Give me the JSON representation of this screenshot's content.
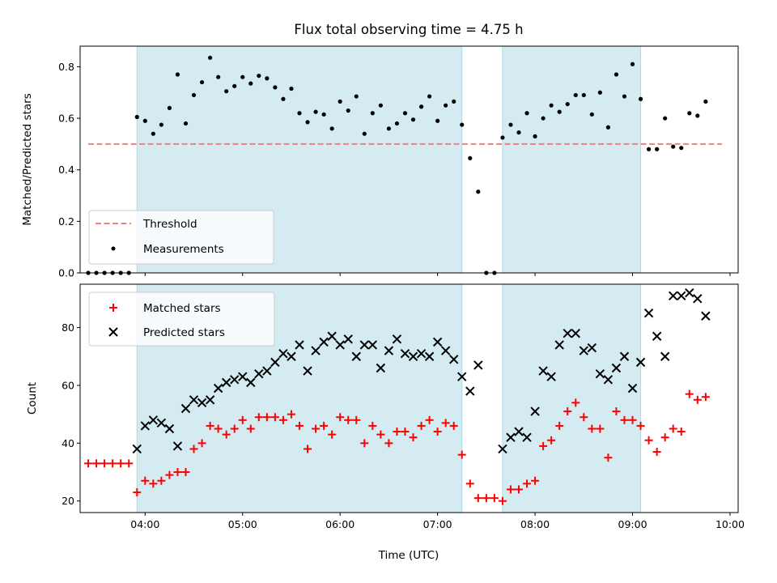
{
  "colors": {
    "shade": "#add8e6",
    "threshold": "#f08080",
    "measurement": "#000000",
    "matched": "#ff0000",
    "predicted": "#000000"
  },
  "chart_data": [
    {
      "type": "scatter",
      "title": "Flux total observing time = 4.75 h",
      "xlabel": "",
      "ylabel": "Matched/Predicted stars",
      "xlim": [
        "03:20",
        "10:05"
      ],
      "ylim": [
        0,
        0.88
      ],
      "y_ticks": [
        0,
        0.2,
        0.4,
        0.6,
        0.8
      ],
      "y_tick_labels": [
        "0.0",
        "0.2",
        "0.4",
        "0.6",
        "0.8"
      ],
      "x_tick_labels_shown": false,
      "shaded_intervals": [
        [
          "03:55",
          "07:15"
        ],
        [
          "07:40",
          "09:05"
        ]
      ],
      "legend": {
        "placement": "lower-left",
        "entries": [
          "Threshold",
          "Measurements"
        ]
      },
      "threshold": {
        "name": "Threshold",
        "value": 0.5,
        "x_range": [
          "03:25",
          "09:55"
        ]
      },
      "series": [
        {
          "name": "Measurements",
          "x": [
            "03:25",
            "03:30",
            "03:35",
            "03:40",
            "03:45",
            "03:50",
            "03:55",
            "04:00",
            "04:05",
            "04:10",
            "04:15",
            "04:20",
            "04:25",
            "04:30",
            "04:35",
            "04:40",
            "04:45",
            "04:50",
            "04:55",
            "05:00",
            "05:05",
            "05:10",
            "05:15",
            "05:20",
            "05:25",
            "05:30",
            "05:35",
            "05:40",
            "05:45",
            "05:50",
            "05:55",
            "06:00",
            "06:05",
            "06:10",
            "06:15",
            "06:20",
            "06:25",
            "06:30",
            "06:35",
            "06:40",
            "06:45",
            "06:50",
            "06:55",
            "07:00",
            "07:05",
            "07:10",
            "07:15",
            "07:20",
            "07:25",
            "07:30",
            "07:35",
            "07:40",
            "07:45",
            "07:50",
            "07:55",
            "08:00",
            "08:05",
            "08:10",
            "08:15",
            "08:20",
            "08:25",
            "08:30",
            "08:35",
            "08:40",
            "08:45",
            "08:50",
            "08:55",
            "09:00",
            "09:05",
            "09:10",
            "09:15",
            "09:20",
            "09:25",
            "09:30",
            "09:35",
            "09:40",
            "09:45"
          ],
          "values": [
            0.0,
            0.0,
            0.0,
            0.0,
            0.0,
            0.0,
            0.605,
            0.59,
            0.54,
            0.575,
            0.64,
            0.77,
            0.58,
            0.69,
            0.74,
            0.835,
            0.76,
            0.705,
            0.725,
            0.76,
            0.735,
            0.765,
            0.755,
            0.72,
            0.675,
            0.715,
            0.62,
            0.585,
            0.625,
            0.615,
            0.56,
            0.665,
            0.63,
            0.685,
            0.54,
            0.62,
            0.65,
            0.56,
            0.58,
            0.62,
            0.595,
            0.645,
            0.685,
            0.59,
            0.65,
            0.665,
            0.575,
            0.445,
            0.315,
            0.0,
            0.0,
            0.525,
            0.575,
            0.545,
            0.62,
            0.53,
            0.6,
            0.65,
            0.625,
            0.655,
            0.69,
            0.69,
            0.615,
            0.7,
            0.565,
            0.77,
            0.685,
            0.81,
            0.675,
            0.48,
            0.48,
            0.6,
            0.49,
            0.485,
            0.62,
            0.61,
            0.665
          ]
        }
      ]
    },
    {
      "type": "scatter",
      "title": "",
      "xlabel": "Time (UTC)",
      "ylabel": "Count",
      "xlim": [
        "03:20",
        "10:05"
      ],
      "ylim": [
        16,
        95
      ],
      "y_ticks": [
        20,
        40,
        60,
        80
      ],
      "y_tick_labels": [
        "20",
        "40",
        "60",
        "80"
      ],
      "x_ticks": [
        "04:00",
        "05:00",
        "06:00",
        "07:00",
        "08:00",
        "09:00",
        "10:00"
      ],
      "x_tick_labels": [
        "04:00",
        "05:00",
        "06:00",
        "07:00",
        "08:00",
        "09:00",
        "10:00"
      ],
      "shaded_intervals": [
        [
          "03:55",
          "07:15"
        ],
        [
          "07:40",
          "09:05"
        ]
      ],
      "legend": {
        "placement": "upper-left",
        "entries": [
          "Matched stars",
          "Predicted stars"
        ]
      },
      "series": [
        {
          "name": "Matched stars",
          "marker": "plus",
          "x": [
            "03:25",
            "03:30",
            "03:35",
            "03:40",
            "03:45",
            "03:50",
            "03:55",
            "04:00",
            "04:05",
            "04:10",
            "04:15",
            "04:20",
            "04:25",
            "04:30",
            "04:35",
            "04:40",
            "04:45",
            "04:50",
            "04:55",
            "05:00",
            "05:05",
            "05:10",
            "05:15",
            "05:20",
            "05:25",
            "05:30",
            "05:35",
            "05:40",
            "05:45",
            "05:50",
            "05:55",
            "06:00",
            "06:05",
            "06:10",
            "06:15",
            "06:20",
            "06:25",
            "06:30",
            "06:35",
            "06:40",
            "06:45",
            "06:50",
            "06:55",
            "07:00",
            "07:05",
            "07:10",
            "07:15",
            "07:20",
            "07:25",
            "07:30",
            "07:35",
            "07:40",
            "07:45",
            "07:50",
            "07:55",
            "08:00",
            "08:05",
            "08:10",
            "08:15",
            "08:20",
            "08:25",
            "08:30",
            "08:35",
            "08:40",
            "08:45",
            "08:50",
            "08:55",
            "09:00",
            "09:05",
            "09:10",
            "09:15",
            "09:20",
            "09:25",
            "09:30",
            "09:35",
            "09:40",
            "09:45"
          ],
          "values": [
            33,
            33,
            33,
            33,
            33,
            33,
            23,
            27,
            26,
            27,
            29,
            30,
            30,
            38,
            40,
            46,
            45,
            43,
            45,
            48,
            45,
            49,
            49,
            49,
            48,
            50,
            46,
            38,
            45,
            46,
            43,
            49,
            48,
            48,
            40,
            46,
            43,
            40,
            44,
            44,
            42,
            46,
            48,
            44,
            47,
            46,
            36,
            26,
            21,
            21,
            21,
            20,
            24,
            24,
            26,
            27,
            39,
            41,
            46,
            51,
            54,
            49,
            45,
            45,
            35,
            51,
            48,
            48,
            46,
            41,
            37,
            42,
            45,
            44,
            57,
            55,
            56
          ]
        },
        {
          "name": "Predicted stars",
          "marker": "x",
          "x": [
            "03:55",
            "04:00",
            "04:05",
            "04:10",
            "04:15",
            "04:20",
            "04:25",
            "04:30",
            "04:35",
            "04:40",
            "04:45",
            "04:50",
            "04:55",
            "05:00",
            "05:05",
            "05:10",
            "05:15",
            "05:20",
            "05:25",
            "05:30",
            "05:35",
            "05:40",
            "05:45",
            "05:50",
            "05:55",
            "06:00",
            "06:05",
            "06:10",
            "06:15",
            "06:20",
            "06:25",
            "06:30",
            "06:35",
            "06:40",
            "06:45",
            "06:50",
            "06:55",
            "07:00",
            "07:05",
            "07:10",
            "07:15",
            "07:20",
            "07:25",
            "07:40",
            "07:45",
            "07:50",
            "07:55",
            "08:00",
            "08:05",
            "08:10",
            "08:15",
            "08:20",
            "08:25",
            "08:30",
            "08:35",
            "08:40",
            "08:45",
            "08:50",
            "08:55",
            "09:00",
            "09:05",
            "09:10",
            "09:15",
            "09:20",
            "09:25",
            "09:30",
            "09:35",
            "09:40",
            "09:45"
          ],
          "values": [
            38,
            46,
            48,
            47,
            45,
            39,
            52,
            55,
            54,
            55,
            59,
            61,
            62,
            63,
            61,
            64,
            65,
            68,
            71,
            70,
            74,
            65,
            72,
            75,
            77,
            74,
            76,
            70,
            74,
            74,
            66,
            72,
            76,
            71,
            70,
            71,
            70,
            75,
            72,
            69,
            63,
            58,
            67,
            38,
            42,
            44,
            42,
            51,
            65,
            63,
            74,
            78,
            78,
            72,
            73,
            64,
            62,
            66,
            70,
            59,
            68,
            85,
            77,
            70,
            91,
            91,
            92,
            90,
            84
          ]
        }
      ]
    }
  ]
}
